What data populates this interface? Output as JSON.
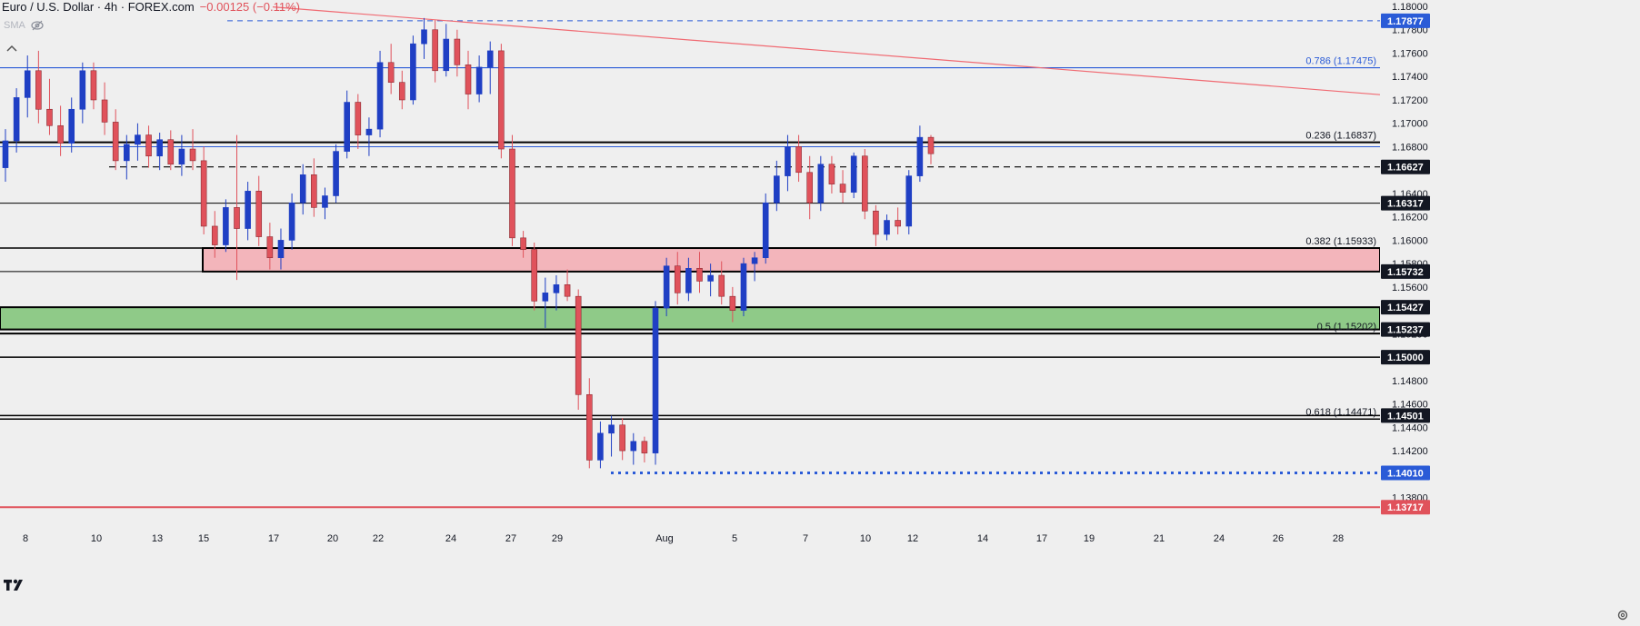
{
  "header": {
    "symbol": "Euro / U.S. Dollar · 4h · FOREX.com",
    "change": "−0.00125 (−0.11%)",
    "indicator": "SMA"
  },
  "colors": {
    "background": "#efefef",
    "up": "#1f3fc4",
    "down": "#e0525b",
    "trendline": "#f06a72",
    "fib_line": "#2a5bd7",
    "red_zone": "#f3b5bb",
    "green_zone": "#8fca88",
    "axis_text": "#131722"
  },
  "icons": [
    "eye-off-icon",
    "chevron-up-icon",
    "tradingview-logo-icon",
    "settings-gear-icon"
  ],
  "chart_data": {
    "type": "candlestick",
    "ylim": [
      1.1368,
      1.18
    ],
    "yticks": [
      "1.18000",
      "1.17800",
      "1.17600",
      "1.17400",
      "1.17200",
      "1.17000",
      "1.16800",
      "1.16600",
      "1.16400",
      "1.16200",
      "1.16000",
      "1.15800",
      "1.15600",
      "1.15400",
      "1.15200",
      "1.15000",
      "1.14800",
      "1.14600",
      "1.14400",
      "1.14200",
      "1.14000",
      "1.13800"
    ],
    "xticks": [
      "8",
      "10",
      "13",
      "15",
      "17",
      "20",
      "22",
      "24",
      "27",
      "29",
      "Aug",
      "5",
      "7",
      "10",
      "12",
      "14",
      "17",
      "19",
      "21",
      "24",
      "26",
      "28"
    ],
    "price_tags": [
      {
        "label": "1.17877",
        "value": 1.17877,
        "color": "#2a5bd7"
      },
      {
        "label": "1.16627",
        "value": 1.16627,
        "color": "#131722"
      },
      {
        "label": "1.16317",
        "value": 1.16317,
        "color": "#131722"
      },
      {
        "label": "1.15732",
        "value": 1.15732,
        "color": "#131722"
      },
      {
        "label": "1.15427",
        "value": 1.15427,
        "color": "#131722"
      },
      {
        "label": "1.15237",
        "value": 1.15237,
        "color": "#131722"
      },
      {
        "label": "1.15000",
        "value": 1.15,
        "color": "#131722"
      },
      {
        "label": "1.14501",
        "value": 1.14501,
        "color": "#131722"
      },
      {
        "label": "1.14010",
        "value": 1.1401,
        "color": "#2a5bd7"
      },
      {
        "label": "1.13717",
        "value": 1.13717,
        "color": "#e0525b"
      }
    ],
    "fib_labels": [
      {
        "label": "0.786 (1.17475)",
        "value": 1.17475,
        "color": "#2a5bd7"
      },
      {
        "label": "0.236 (1.16837)",
        "value": 1.16837,
        "color": "#131722"
      },
      {
        "label": "0.382 (1.15933)",
        "value": 1.15933,
        "color": "#131722"
      },
      {
        "label": "0.5 (1.15202)",
        "value": 1.15202,
        "color": "#131722"
      },
      {
        "label": "0.618 (1.14471)",
        "value": 1.14471,
        "color": "#131722"
      }
    ],
    "zones": [
      {
        "name": "red-zone",
        "top": 1.15933,
        "bottom": 1.15732
      },
      {
        "name": "green-zone",
        "top": 1.15427,
        "bottom": 1.15237
      }
    ],
    "candles": [
      [
        1.1662,
        1.1695,
        1.165,
        1.1685
      ],
      [
        1.1685,
        1.173,
        1.1675,
        1.1722
      ],
      [
        1.1722,
        1.1758,
        1.1705,
        1.1745
      ],
      [
        1.1745,
        1.1762,
        1.17,
        1.1712
      ],
      [
        1.1712,
        1.1738,
        1.169,
        1.1698
      ],
      [
        1.1698,
        1.1715,
        1.1672,
        1.1683
      ],
      [
        1.1683,
        1.1722,
        1.1675,
        1.1712
      ],
      [
        1.1712,
        1.1752,
        1.17,
        1.1745
      ],
      [
        1.1745,
        1.1752,
        1.1712,
        1.172
      ],
      [
        1.172,
        1.1735,
        1.169,
        1.1701
      ],
      [
        1.1701,
        1.1712,
        1.166,
        1.1668
      ],
      [
        1.1668,
        1.169,
        1.1652,
        1.1682
      ],
      [
        1.1682,
        1.17,
        1.1668,
        1.169
      ],
      [
        1.169,
        1.1698,
        1.1662,
        1.1672
      ],
      [
        1.1672,
        1.1692,
        1.166,
        1.1686
      ],
      [
        1.1686,
        1.1694,
        1.166,
        1.1665
      ],
      [
        1.1665,
        1.169,
        1.1655,
        1.1678
      ],
      [
        1.1678,
        1.1695,
        1.166,
        1.1668
      ],
      [
        1.1668,
        1.168,
        1.1605,
        1.1612
      ],
      [
        1.1612,
        1.1625,
        1.1585,
        1.1596
      ],
      [
        1.1596,
        1.1635,
        1.159,
        1.1628
      ],
      [
        1.1628,
        1.169,
        1.1566,
        1.161
      ],
      [
        1.161,
        1.165,
        1.16,
        1.1642
      ],
      [
        1.1642,
        1.1655,
        1.1595,
        1.1603
      ],
      [
        1.1603,
        1.1615,
        1.1575,
        1.1585
      ],
      [
        1.1585,
        1.161,
        1.1575,
        1.16
      ],
      [
        1.16,
        1.164,
        1.1592,
        1.1632
      ],
      [
        1.1632,
        1.1665,
        1.1622,
        1.1656
      ],
      [
        1.1656,
        1.167,
        1.162,
        1.1628
      ],
      [
        1.1628,
        1.1645,
        1.1618,
        1.1638
      ],
      [
        1.1638,
        1.1682,
        1.1632,
        1.1676
      ],
      [
        1.1676,
        1.1728,
        1.167,
        1.1718
      ],
      [
        1.1718,
        1.1725,
        1.1678,
        1.169
      ],
      [
        1.169,
        1.1705,
        1.1672,
        1.1695
      ],
      [
        1.1695,
        1.1762,
        1.1688,
        1.1752
      ],
      [
        1.1752,
        1.1768,
        1.1725,
        1.1735
      ],
      [
        1.1735,
        1.1745,
        1.1712,
        1.172
      ],
      [
        1.172,
        1.1775,
        1.1716,
        1.1768
      ],
      [
        1.1768,
        1.179,
        1.1755,
        1.178
      ],
      [
        1.178,
        1.1788,
        1.1735,
        1.1745
      ],
      [
        1.1745,
        1.1785,
        1.174,
        1.1772
      ],
      [
        1.1772,
        1.178,
        1.174,
        1.175
      ],
      [
        1.175,
        1.1762,
        1.1712,
        1.1725
      ],
      [
        1.1725,
        1.1758,
        1.1718,
        1.1748
      ],
      [
        1.1748,
        1.177,
        1.1725,
        1.1762
      ],
      [
        1.1762,
        1.1768,
        1.167,
        1.1678
      ],
      [
        1.1678,
        1.169,
        1.1595,
        1.1602
      ],
      [
        1.1602,
        1.1608,
        1.1585,
        1.1592
      ],
      [
        1.1592,
        1.1598,
        1.154,
        1.1548
      ],
      [
        1.1548,
        1.1568,
        1.1525,
        1.1555
      ],
      [
        1.1555,
        1.157,
        1.154,
        1.1562
      ],
      [
        1.1562,
        1.1575,
        1.1548,
        1.1552
      ],
      [
        1.1552,
        1.1558,
        1.1455,
        1.1468
      ],
      [
        1.1468,
        1.1482,
        1.1405,
        1.1412
      ],
      [
        1.1412,
        1.1445,
        1.1405,
        1.1435
      ],
      [
        1.1435,
        1.145,
        1.1415,
        1.1442
      ],
      [
        1.1442,
        1.1448,
        1.1412,
        1.142
      ],
      [
        1.142,
        1.1435,
        1.1408,
        1.1428
      ],
      [
        1.1428,
        1.1432,
        1.141,
        1.1418
      ],
      [
        1.1418,
        1.1548,
        1.1408,
        1.1542
      ],
      [
        1.1542,
        1.1585,
        1.1535,
        1.1578
      ],
      [
        1.1578,
        1.159,
        1.1545,
        1.1555
      ],
      [
        1.1555,
        1.1585,
        1.1548,
        1.1576
      ],
      [
        1.1576,
        1.159,
        1.1555,
        1.1565
      ],
      [
        1.1565,
        1.158,
        1.1552,
        1.157
      ],
      [
        1.157,
        1.1582,
        1.1545,
        1.1552
      ],
      [
        1.1552,
        1.156,
        1.153,
        1.154
      ],
      [
        1.154,
        1.1585,
        1.1535,
        1.158
      ],
      [
        1.158,
        1.159,
        1.1565,
        1.1585
      ],
      [
        1.1585,
        1.164,
        1.158,
        1.1632
      ],
      [
        1.1632,
        1.1668,
        1.1625,
        1.1655
      ],
      [
        1.1655,
        1.169,
        1.1642,
        1.168
      ],
      [
        1.168,
        1.169,
        1.165,
        1.1658
      ],
      [
        1.1658,
        1.1672,
        1.1618,
        1.1632
      ],
      [
        1.1632,
        1.1672,
        1.1625,
        1.1665
      ],
      [
        1.1665,
        1.1672,
        1.164,
        1.1648
      ],
      [
        1.1648,
        1.166,
        1.1632,
        1.1641
      ],
      [
        1.1641,
        1.1675,
        1.1636,
        1.1672
      ],
      [
        1.1672,
        1.1678,
        1.1618,
        1.1625
      ],
      [
        1.1625,
        1.163,
        1.1595,
        1.1605
      ],
      [
        1.1605,
        1.1622,
        1.16,
        1.1617
      ],
      [
        1.1617,
        1.1628,
        1.1605,
        1.1612
      ],
      [
        1.1612,
        1.166,
        1.1605,
        1.1655
      ],
      [
        1.1655,
        1.1698,
        1.165,
        1.1688
      ],
      [
        1.1688,
        1.169,
        1.1665,
        1.1674
      ]
    ]
  }
}
